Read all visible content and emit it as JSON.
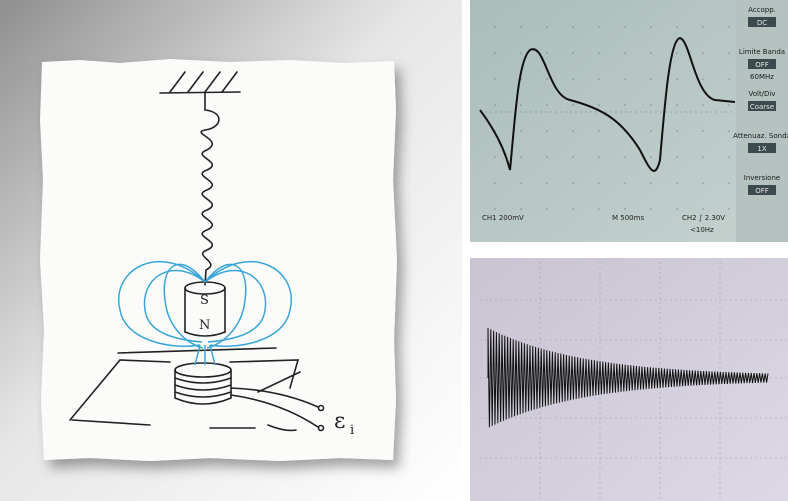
{
  "sketch": {
    "magnet_top": "S",
    "magnet_bottom": "N",
    "emf_label": "ε",
    "emf_subscript": "i"
  },
  "scope_top": {
    "menu": [
      {
        "title": "Accopp.",
        "value": "DC"
      },
      {
        "title": "Limite Banda",
        "value": "OFF",
        "note": "60MHz"
      },
      {
        "title": "Volt/Div",
        "value": "Coarse"
      },
      {
        "title": "Attenuaz. Sonda",
        "value": "1X"
      },
      {
        "title": "Inversione",
        "value": "OFF"
      }
    ],
    "footer": [
      "CH1 200mV",
      "M 500ms",
      "CH2 ∫ 2.30V",
      "<10Hz"
    ]
  }
}
